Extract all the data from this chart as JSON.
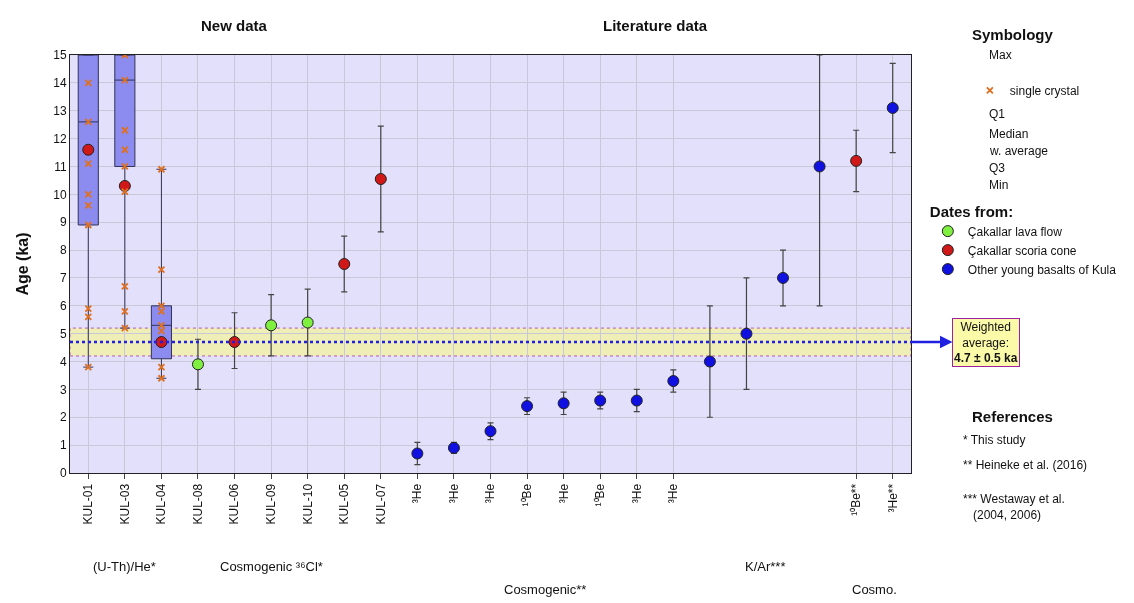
{
  "chart_data": {
    "type": "scatter",
    "ylabel": "Age (ka)",
    "ylim": [
      0,
      15
    ],
    "yticks": [
      0,
      1,
      2,
      3,
      4,
      5,
      6,
      7,
      8,
      9,
      10,
      11,
      12,
      13,
      14,
      15
    ],
    "grid": true,
    "legend": "right",
    "legend_title": "Dates from:",
    "marker": "circle",
    "categories": [
      "KUL-01",
      "KUL-03",
      "KUL-04",
      "KUL-08",
      "KUL-06",
      "KUL-09",
      "KUL-10",
      "KUL-05",
      "KUL-07",
      "³He",
      "³He",
      "³He",
      "¹⁰Be",
      "³He",
      "¹⁰Be",
      "³He",
      "³He",
      null,
      null,
      null,
      null,
      "¹⁰Be**",
      "³He**"
    ],
    "series": [
      {
        "type": "box",
        "color": "#8c8cf0",
        "boxes": [
          {
            "low": 3.8,
            "q1": 8.9,
            "median": 12.6,
            "q3": 15,
            "high": 15
          },
          {
            "low": 5.2,
            "q1": 11.0,
            "median": 14.1,
            "q3": 15,
            "high": 15
          },
          {
            "low": 3.4,
            "q1": 4.1,
            "median": 5.3,
            "q3": 6.0,
            "high": 10.9
          },
          null,
          null,
          null,
          null,
          null,
          null,
          null,
          null,
          null,
          null,
          null,
          null,
          null,
          null,
          null,
          null,
          null,
          null,
          null,
          null
        ]
      },
      {
        "type": "scatter",
        "name": "single crystal",
        "color": "#e07020",
        "marker": "cross",
        "x": [
          "KUL-01",
          "KUL-01",
          "KUL-01",
          "KUL-01",
          "KUL-01",
          "KUL-01",
          "KUL-01",
          "KUL-01",
          "KUL-01",
          "KUL-03",
          "KUL-03",
          "KUL-03",
          "KUL-03",
          "KUL-03",
          "KUL-03",
          "KUL-03",
          "KUL-03",
          "KUL-03",
          "KUL-04",
          "KUL-04",
          "KUL-04",
          "KUL-04",
          "KUL-04",
          "KUL-04",
          "KUL-04",
          "KUL-04"
        ],
        "values": [
          14.0,
          12.6,
          11.1,
          10.0,
          9.6,
          8.9,
          5.9,
          5.6,
          3.8,
          15.0,
          14.1,
          12.3,
          11.6,
          11.0,
          10.1,
          6.7,
          5.8,
          5.2,
          10.9,
          7.3,
          6.0,
          5.8,
          5.3,
          5.1,
          3.8,
          3.4
        ]
      },
      {
        "type": "scatter",
        "name": "Çakallar lava flow",
        "color": "#80f040",
        "values": [
          null,
          null,
          null,
          3.9,
          null,
          5.3,
          5.4,
          null,
          null,
          null,
          null,
          null,
          null,
          null,
          null,
          null,
          null,
          null,
          null,
          null,
          null,
          null,
          null
        ],
        "errors": [
          null,
          null,
          null,
          [
            3.0,
            4.8
          ],
          null,
          [
            4.2,
            6.4
          ],
          [
            4.2,
            6.6
          ],
          null,
          null,
          null,
          null,
          null,
          null,
          null,
          null,
          null,
          null,
          null,
          null,
          null,
          null,
          null,
          null
        ]
      },
      {
        "type": "scatter",
        "name": "Çakallar scoria cone",
        "color": "#d01818",
        "values": [
          11.6,
          10.3,
          4.7,
          null,
          4.7,
          null,
          null,
          7.5,
          10.55,
          null,
          null,
          null,
          null,
          null,
          null,
          null,
          null,
          null,
          null,
          null,
          null,
          11.2,
          null
        ],
        "errors": [
          null,
          null,
          null,
          null,
          [
            3.75,
            5.75
          ],
          null,
          null,
          [
            6.5,
            8.5
          ],
          [
            8.65,
            12.45
          ],
          null,
          null,
          null,
          null,
          null,
          null,
          null,
          null,
          null,
          null,
          null,
          null,
          [
            10.1,
            12.3
          ],
          null
        ]
      },
      {
        "type": "scatter",
        "name": "Other young basalts of Kula",
        "color": "#1010e0",
        "values": [
          null,
          null,
          null,
          null,
          null,
          null,
          null,
          null,
          null,
          0.7,
          0.9,
          1.5,
          2.4,
          2.5,
          2.6,
          2.6,
          3.3,
          4.0,
          5.0,
          7.0,
          11.0,
          null,
          13.1
        ],
        "errors": [
          null,
          null,
          null,
          null,
          null,
          null,
          null,
          null,
          null,
          [
            0.3,
            1.1
          ],
          [
            0.7,
            1.1
          ],
          [
            1.2,
            1.8
          ],
          [
            2.1,
            2.7
          ],
          [
            2.1,
            2.9
          ],
          [
            2.3,
            2.9
          ],
          [
            2.2,
            3.0
          ],
          [
            2.9,
            3.7
          ],
          [
            2.0,
            6.0
          ],
          [
            3.0,
            7.0
          ],
          [
            6.0,
            8.0
          ],
          [
            6.0,
            15.0
          ],
          null,
          [
            11.5,
            14.7
          ]
        ]
      }
    ],
    "ref_lines": [
      {
        "axis": "y",
        "value": 4.7,
        "label": "Weighted average: 4.7 ± 0.5 ka",
        "color": "#2020e0",
        "line_style": "dotted"
      }
    ],
    "bands": [
      {
        "axis": "y",
        "from": 4.2,
        "to": 5.2,
        "color": "#f4f49a"
      }
    ],
    "annotations": [
      "New data",
      "Literature data",
      "(U-Th)/He*",
      "Cosmogenic ³⁶Cl*",
      "Cosmogenic**",
      "K/Ar***",
      "Cosmo.",
      "Symbology",
      "Max",
      "Q1",
      "Median",
      "w. average",
      "Q3",
      "Min",
      "References",
      "* This study",
      "** Heineke et al. (2016)",
      "*** Westaway et al. (2004, 2006)"
    ]
  }
}
